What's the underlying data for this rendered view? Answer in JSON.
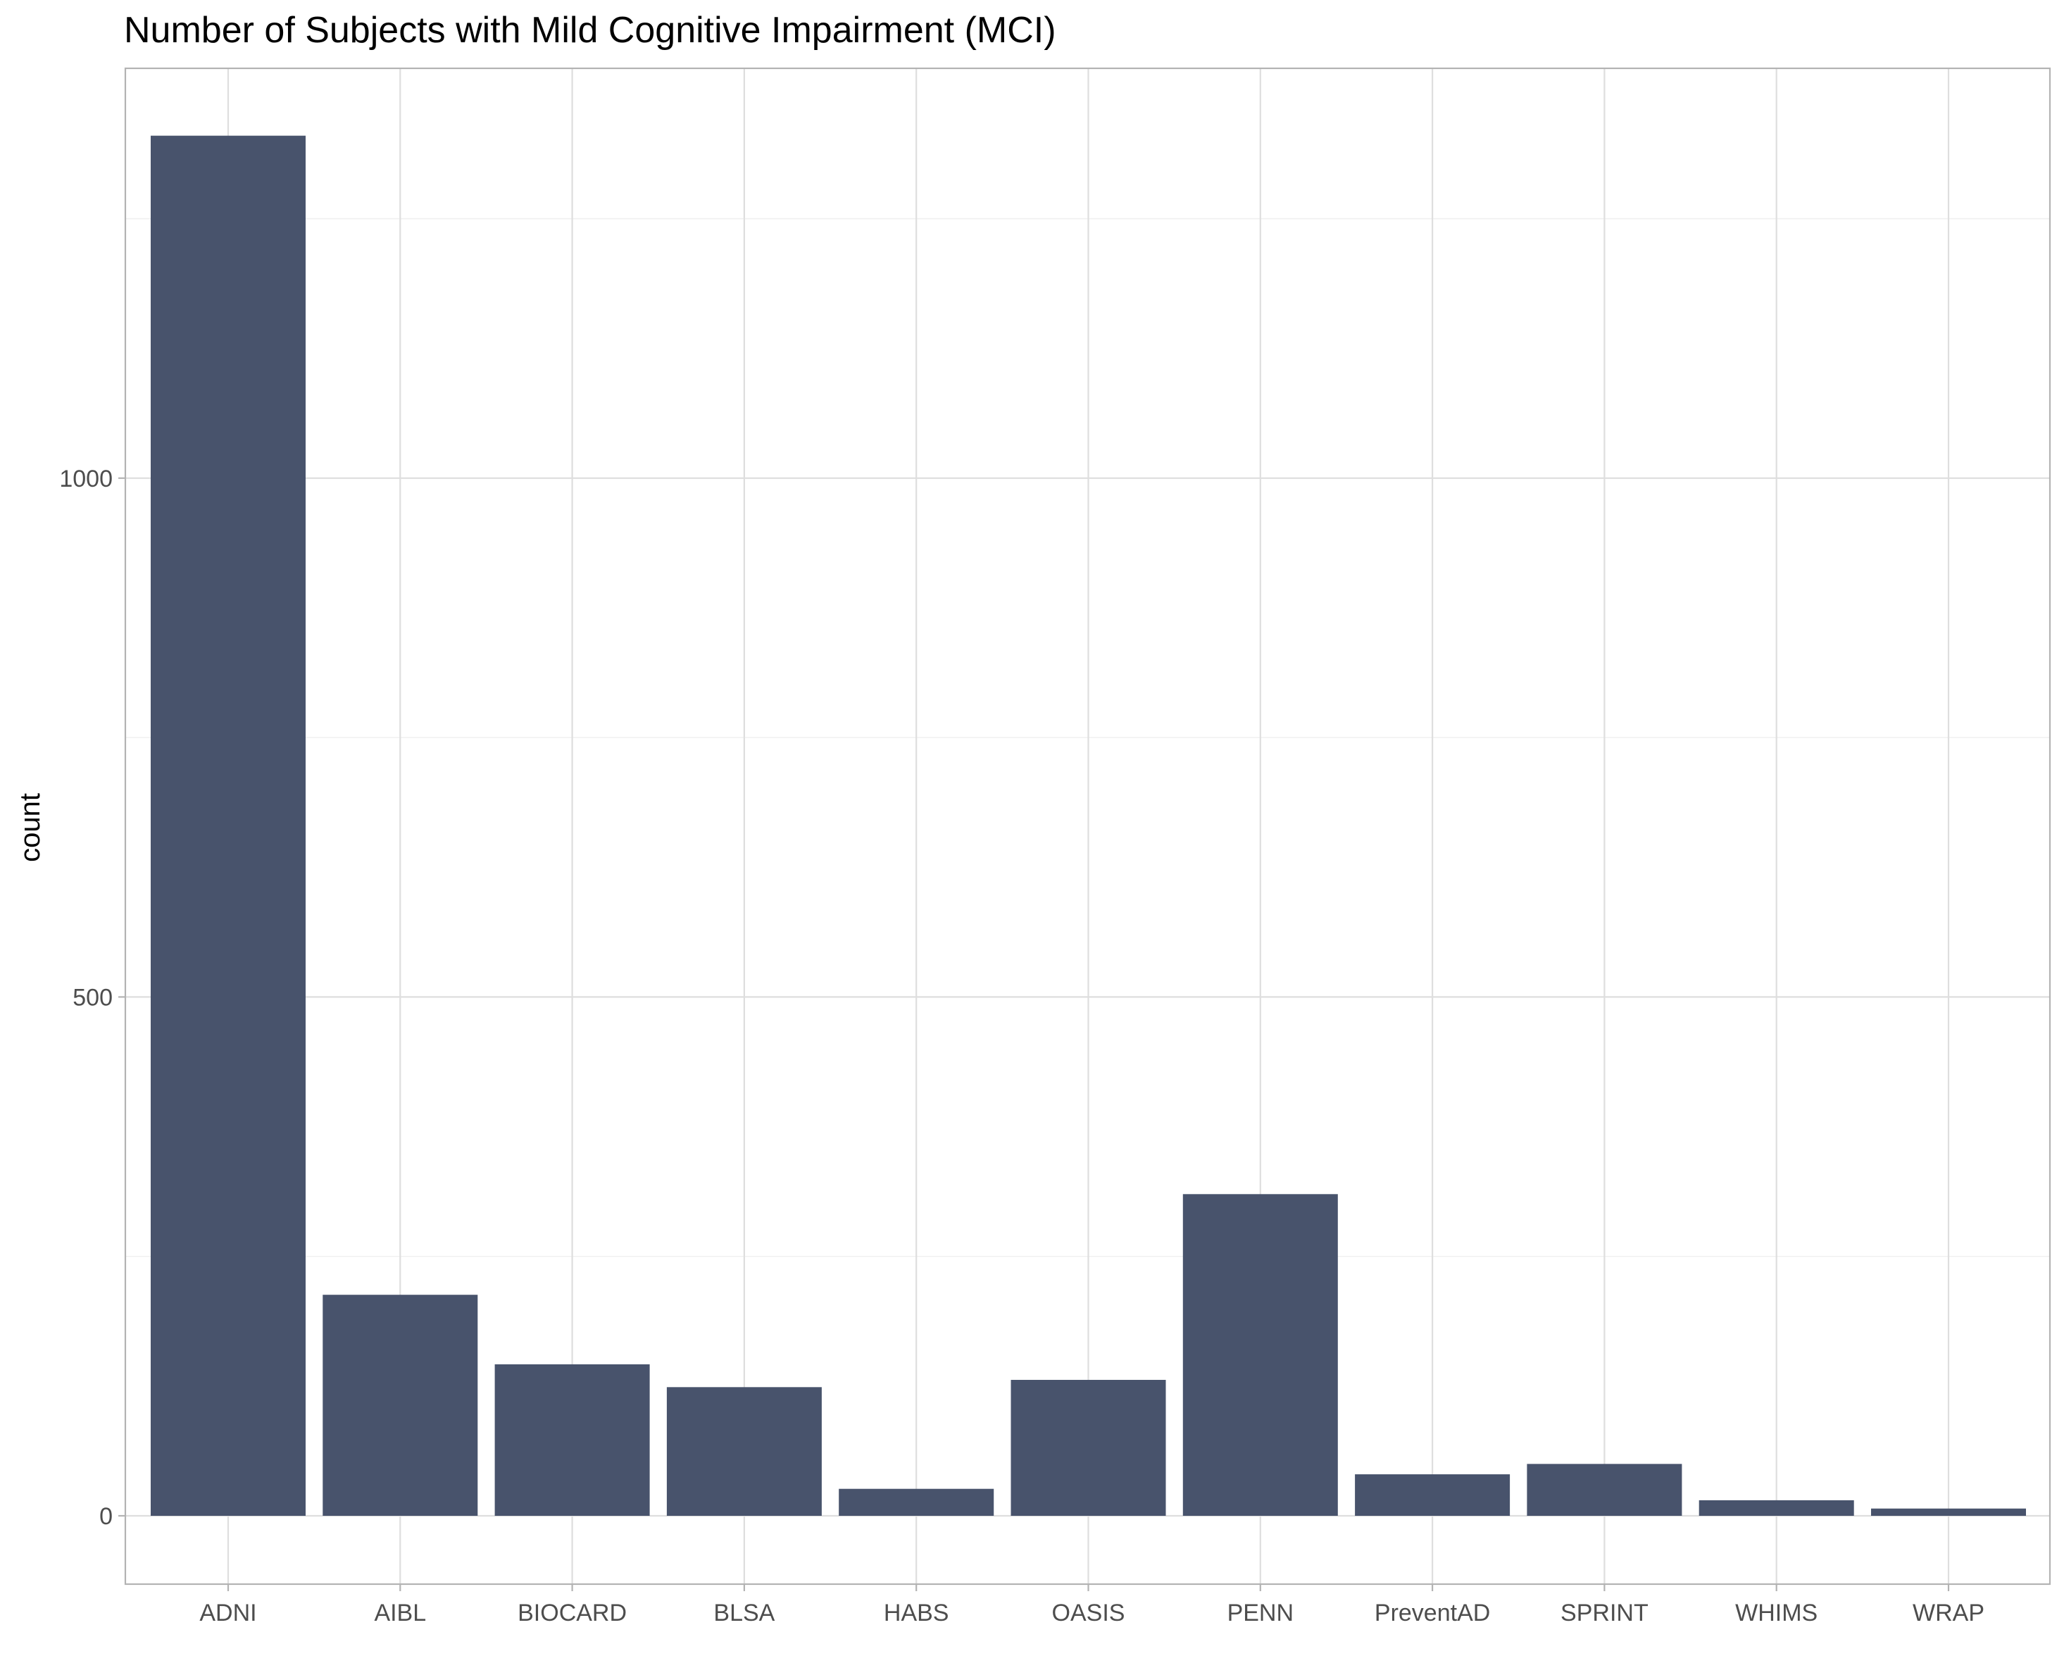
{
  "chart_data": {
    "type": "bar",
    "title": "Number of Subjects with Mild Cognitive Impairment (MCI)",
    "xlabel": "",
    "ylabel": "count",
    "categories": [
      "ADNI",
      "AIBL",
      "BIOCARD",
      "BLSA",
      "HABS",
      "OASIS",
      "PENN",
      "PreventAD",
      "SPRINT",
      "WHIMS",
      "WRAP"
    ],
    "values": [
      1330,
      213,
      146,
      124,
      26,
      131,
      310,
      40,
      50,
      15,
      7
    ],
    "y_ticks": [
      0,
      500,
      1000
    ],
    "y_tick_labels": [
      "0",
      "500",
      "1000"
    ],
    "ylim": [
      -65,
      1400
    ],
    "grid": true,
    "bar_color": "#48536c"
  }
}
